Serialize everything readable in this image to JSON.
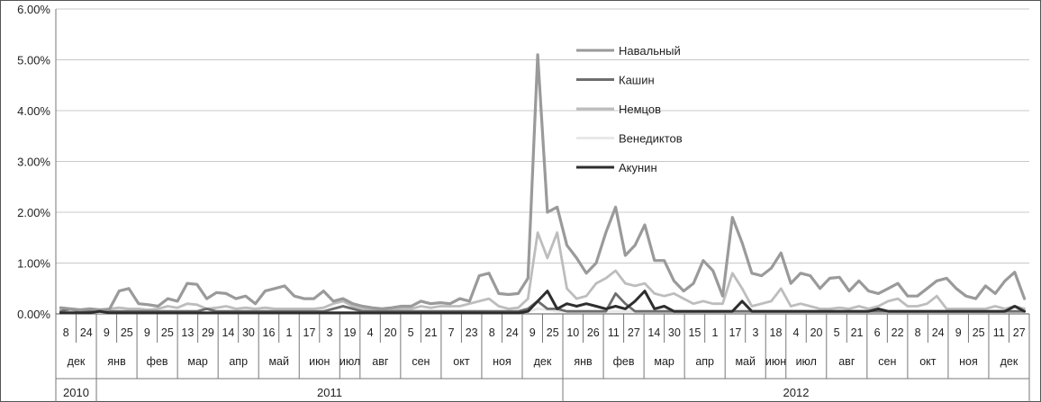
{
  "chart_data": {
    "type": "line",
    "y_ticks": [
      "0.00%",
      "1.00%",
      "2.00%",
      "3.00%",
      "4.00%",
      "5.00%",
      "6.00%"
    ],
    "ylim": [
      0,
      6
    ],
    "grid": true,
    "legend_position": "top-center",
    "week_labels": [
      "8",
      "24",
      "9",
      "25",
      "9",
      "25",
      "13",
      "29",
      "14",
      "30",
      "16",
      "1",
      "17",
      "3",
      "19",
      "4",
      "20",
      "5",
      "21",
      "7",
      "23",
      "8",
      "24",
      "9",
      "25",
      "10",
      "26",
      "11",
      "27",
      "14",
      "30",
      "15",
      "1",
      "17",
      "3",
      "18",
      "4",
      "20",
      "5",
      "21",
      "6",
      "22",
      "8",
      "24",
      "9",
      "25",
      "11",
      "27"
    ],
    "months": [
      {
        "label": "дек",
        "from": 0,
        "to": 2
      },
      {
        "label": "янв",
        "from": 2,
        "to": 4
      },
      {
        "label": "фев",
        "from": 4,
        "to": 6
      },
      {
        "label": "мар",
        "from": 6,
        "to": 8
      },
      {
        "label": "апр",
        "from": 8,
        "to": 10
      },
      {
        "label": "май",
        "from": 10,
        "to": 12
      },
      {
        "label": "июн",
        "from": 12,
        "to": 14
      },
      {
        "label": "июл",
        "from": 14,
        "to": 15
      },
      {
        "label": "авг",
        "from": 15,
        "to": 17
      },
      {
        "label": "сен",
        "from": 17,
        "to": 19
      },
      {
        "label": "окт",
        "from": 19,
        "to": 21
      },
      {
        "label": "ноя",
        "from": 21,
        "to": 23
      },
      {
        "label": "дек",
        "from": 23,
        "to": 25
      },
      {
        "label": "янв",
        "from": 25,
        "to": 27
      },
      {
        "label": "фев",
        "from": 27,
        "to": 29
      },
      {
        "label": "мар",
        "from": 29,
        "to": 31
      },
      {
        "label": "апр",
        "from": 31,
        "to": 33
      },
      {
        "label": "май",
        "from": 33,
        "to": 35
      },
      {
        "label": "июн",
        "from": 35,
        "to": 36
      },
      {
        "label": "июл",
        "from": 36,
        "to": 38
      },
      {
        "label": "авг",
        "from": 38,
        "to": 40
      },
      {
        "label": "сен",
        "from": 40,
        "to": 42
      },
      {
        "label": "окт",
        "from": 42,
        "to": 44
      },
      {
        "label": "ноя",
        "from": 44,
        "to": 46
      },
      {
        "label": "дек",
        "from": 46,
        "to": 48
      }
    ],
    "years": [
      {
        "label": "2010",
        "from": 0,
        "to": 2
      },
      {
        "label": "2011",
        "from": 2,
        "to": 25
      },
      {
        "label": "2012",
        "from": 25,
        "to": 48
      }
    ],
    "series": [
      {
        "name": "Навальный",
        "color": "#9a9a9a",
        "values": [
          0.12,
          0.1,
          0.08,
          0.1,
          0.08,
          0.09,
          0.45,
          0.5,
          0.2,
          0.18,
          0.15,
          0.3,
          0.25,
          0.6,
          0.58,
          0.3,
          0.42,
          0.4,
          0.3,
          0.35,
          0.2,
          0.45,
          0.5,
          0.55,
          0.35,
          0.3,
          0.3,
          0.45,
          0.25,
          0.3,
          0.2,
          0.15,
          0.12,
          0.1,
          0.12,
          0.15,
          0.15,
          0.25,
          0.2,
          0.22,
          0.2,
          0.3,
          0.25,
          0.75,
          0.8,
          0.4,
          0.38,
          0.4,
          0.7,
          5.1,
          2.0,
          2.1,
          1.35,
          1.1,
          0.8,
          1.0,
          1.6,
          2.1,
          1.15,
          1.35,
          1.75,
          1.05,
          1.05,
          0.65,
          0.45,
          0.6,
          1.05,
          0.85,
          0.35,
          1.9,
          1.4,
          0.8,
          0.75,
          0.9,
          1.2,
          0.6,
          0.8,
          0.75,
          0.5,
          0.7,
          0.72,
          0.45,
          0.65,
          0.45,
          0.4,
          0.5,
          0.6,
          0.35,
          0.35,
          0.5,
          0.65,
          0.7,
          0.5,
          0.35,
          0.3,
          0.55,
          0.4,
          0.65,
          0.82,
          0.3
        ]
      },
      {
        "name": "Кашин",
        "color": "#6e6e6e",
        "values": [
          0.05,
          0.1,
          0.05,
          0.05,
          0.05,
          0.05,
          0.05,
          0.05,
          0.05,
          0.05,
          0.05,
          0.05,
          0.05,
          0.05,
          0.05,
          0.1,
          0.05,
          0.05,
          0.05,
          0.05,
          0.05,
          0.05,
          0.05,
          0.05,
          0.05,
          0.05,
          0.05,
          0.05,
          0.1,
          0.15,
          0.1,
          0.05,
          0.05,
          0.05,
          0.05,
          0.05,
          0.05,
          0.05,
          0.05,
          0.05,
          0.05,
          0.05,
          0.05,
          0.05,
          0.05,
          0.05,
          0.05,
          0.05,
          0.1,
          0.25,
          0.1,
          0.1,
          0.05,
          0.05,
          0.05,
          0.05,
          0.05,
          0.4,
          0.2,
          0.05,
          0.05,
          0.05,
          0.05,
          0.05,
          0.05,
          0.05,
          0.05,
          0.05,
          0.05,
          0.05,
          0.05,
          0.05,
          0.05,
          0.05,
          0.05,
          0.05,
          0.05,
          0.05,
          0.05,
          0.05,
          0.05,
          0.05,
          0.05,
          0.05,
          0.05,
          0.05,
          0.05,
          0.05,
          0.05,
          0.05,
          0.05,
          0.05,
          0.05,
          0.05,
          0.05,
          0.05,
          0.05,
          0.05,
          0.05,
          0.05
        ]
      },
      {
        "name": "Немцов",
        "color": "#bdbdbd",
        "values": [
          0.08,
          0.05,
          0.05,
          0.1,
          0.08,
          0.1,
          0.12,
          0.1,
          0.1,
          0.08,
          0.1,
          0.15,
          0.12,
          0.2,
          0.18,
          0.1,
          0.12,
          0.15,
          0.1,
          0.12,
          0.1,
          0.12,
          0.1,
          0.1,
          0.1,
          0.1,
          0.1,
          0.12,
          0.2,
          0.25,
          0.15,
          0.1,
          0.08,
          0.08,
          0.08,
          0.1,
          0.1,
          0.15,
          0.12,
          0.15,
          0.15,
          0.15,
          0.2,
          0.25,
          0.3,
          0.15,
          0.1,
          0.12,
          0.3,
          1.6,
          1.1,
          1.6,
          0.5,
          0.3,
          0.35,
          0.6,
          0.7,
          0.85,
          0.6,
          0.55,
          0.6,
          0.4,
          0.35,
          0.4,
          0.3,
          0.2,
          0.25,
          0.2,
          0.2,
          0.8,
          0.5,
          0.15,
          0.2,
          0.25,
          0.5,
          0.15,
          0.2,
          0.15,
          0.1,
          0.1,
          0.12,
          0.1,
          0.15,
          0.1,
          0.15,
          0.25,
          0.3,
          0.15,
          0.15,
          0.2,
          0.35,
          0.1,
          0.1,
          0.1,
          0.1,
          0.1,
          0.15,
          0.1,
          0.15,
          0.1
        ]
      },
      {
        "name": "Венедиктов",
        "color": "#e8e8e8",
        "values": [
          0.03,
          0.03,
          0.03,
          0.03,
          0.03,
          0.03,
          0.03,
          0.03,
          0.03,
          0.03,
          0.03,
          0.03,
          0.03,
          0.03,
          0.03,
          0.03,
          0.03,
          0.03,
          0.03,
          0.03,
          0.03,
          0.03,
          0.03,
          0.03,
          0.03,
          0.03,
          0.03,
          0.03,
          0.03,
          0.03,
          0.03,
          0.03,
          0.03,
          0.03,
          0.03,
          0.03,
          0.03,
          0.03,
          0.03,
          0.03,
          0.03,
          0.03,
          0.03,
          0.03,
          0.03,
          0.03,
          0.03,
          0.03,
          0.05,
          0.1,
          0.08,
          0.05,
          0.05,
          0.05,
          0.05,
          0.05,
          0.05,
          0.05,
          0.05,
          0.05,
          0.05,
          0.05,
          0.05,
          0.05,
          0.05,
          0.05,
          0.05,
          0.05,
          0.05,
          0.05,
          0.05,
          0.05,
          0.05,
          0.05,
          0.05,
          0.05,
          0.05,
          0.05,
          0.05,
          0.05,
          0.05,
          0.05,
          0.05,
          0.05,
          0.05,
          0.05,
          0.05,
          0.05,
          0.05,
          0.05,
          0.05,
          0.05,
          0.05,
          0.05,
          0.05,
          0.05,
          0.05,
          0.05,
          0.05,
          0.05
        ]
      },
      {
        "name": "Акунин",
        "color": "#2e2e2e",
        "values": [
          0.02,
          0.02,
          0.02,
          0.02,
          0.05,
          0.02,
          0.02,
          0.02,
          0.02,
          0.02,
          0.02,
          0.02,
          0.02,
          0.02,
          0.02,
          0.02,
          0.02,
          0.02,
          0.02,
          0.02,
          0.02,
          0.02,
          0.02,
          0.02,
          0.02,
          0.02,
          0.02,
          0.02,
          0.02,
          0.02,
          0.02,
          0.02,
          0.02,
          0.02,
          0.02,
          0.02,
          0.02,
          0.02,
          0.02,
          0.02,
          0.02,
          0.02,
          0.02,
          0.02,
          0.02,
          0.02,
          0.02,
          0.02,
          0.05,
          0.25,
          0.45,
          0.1,
          0.2,
          0.15,
          0.2,
          0.15,
          0.1,
          0.15,
          0.1,
          0.25,
          0.45,
          0.1,
          0.15,
          0.05,
          0.05,
          0.05,
          0.05,
          0.05,
          0.05,
          0.05,
          0.25,
          0.05,
          0.05,
          0.05,
          0.05,
          0.05,
          0.05,
          0.05,
          0.05,
          0.05,
          0.05,
          0.05,
          0.05,
          0.05,
          0.1,
          0.05,
          0.05,
          0.05,
          0.05,
          0.05,
          0.05,
          0.05,
          0.05,
          0.05,
          0.05,
          0.05,
          0.05,
          0.05,
          0.15,
          0.05
        ]
      }
    ]
  }
}
